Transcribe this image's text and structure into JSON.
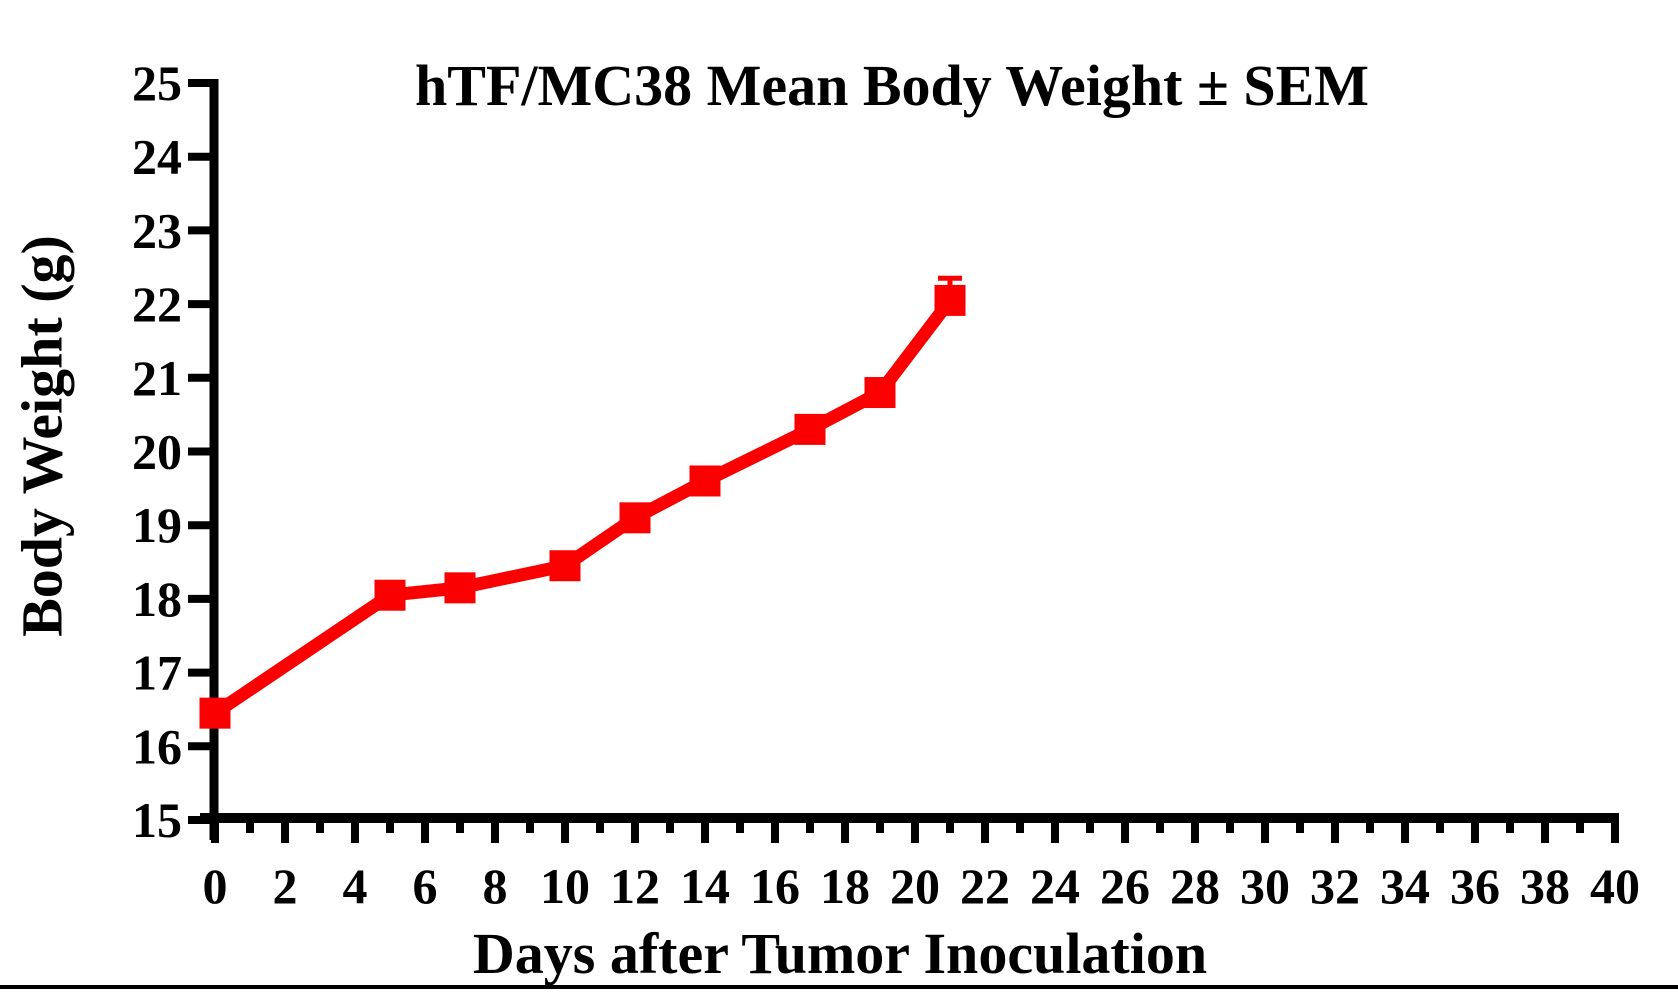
{
  "page": {
    "background_color": "#ffffff",
    "bottom_rule_color": "#000000"
  },
  "chart_data": {
    "type": "line",
    "title": "hTF/MC38 Mean Body Weight ± SEM",
    "xlabel": "Days after Tumor Inoculation",
    "ylabel": "Body Weight (g)",
    "xlim": [
      0,
      40
    ],
    "ylim": [
      15,
      25
    ],
    "grid": false,
    "legend": "none",
    "axis_color": "#000000",
    "x_major_tick_step": 2,
    "x_minor_tick_step": 1,
    "x_tick_labels": [
      "0",
      "2",
      "4",
      "6",
      "8",
      "10",
      "12",
      "14",
      "16",
      "18",
      "20",
      "22",
      "24",
      "26",
      "28",
      "30",
      "32",
      "34",
      "36",
      "38",
      "40"
    ],
    "y_ticks": [
      15,
      16,
      17,
      18,
      19,
      20,
      21,
      22,
      23,
      24,
      25
    ],
    "y_tick_labels": [
      "15",
      "16",
      "17",
      "18",
      "19",
      "20",
      "21",
      "22",
      "23",
      "24",
      "25"
    ],
    "series": [
      {
        "name": "hTF/MC38 mean body weight",
        "color": "#FA0000",
        "marker": "square",
        "x": [
          0,
          5,
          7,
          10,
          12,
          14,
          17,
          19,
          21
        ],
        "y": [
          16.45,
          18.05,
          18.15,
          18.45,
          19.1,
          19.6,
          20.3,
          20.8,
          22.05
        ],
        "sem_upper": [
          0,
          0,
          0,
          0,
          0,
          0,
          0,
          0,
          0.3
        ]
      }
    ]
  }
}
